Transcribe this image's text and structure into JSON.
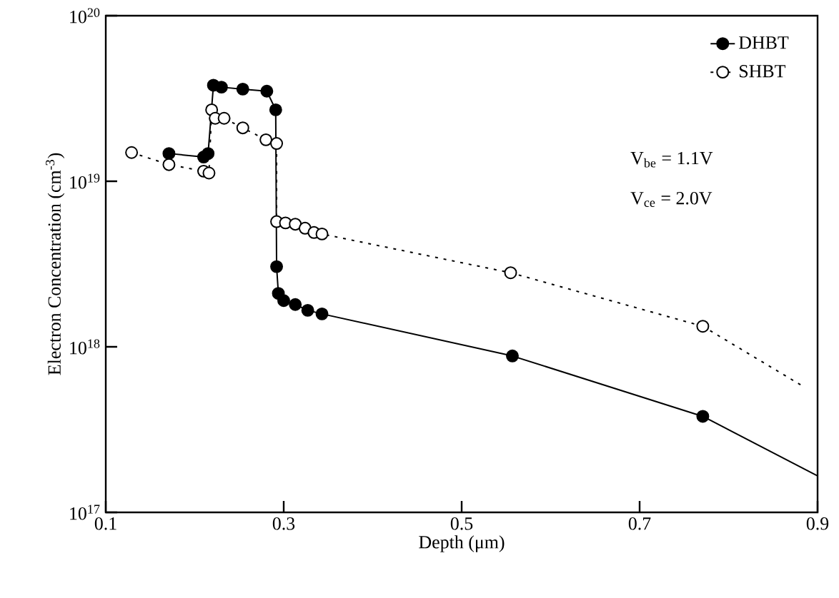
{
  "chart_data": {
    "type": "line",
    "xlabel": "Depth (μm)",
    "ylabel": "Electron Concentration (cm$^{-3}$)",
    "log": "y",
    "xlim": [
      0.1,
      0.9
    ],
    "xticks": [
      0.1,
      0.3,
      0.5,
      0.7,
      0.9
    ],
    "ylim": [
      1e+17,
      1e+20
    ],
    "yticks": [
      {
        "value": 1e+17,
        "label": "10$^{17}$"
      },
      {
        "value": 1e+18,
        "label": "10$^{18}$"
      },
      {
        "value": 1e+19,
        "label": "10$^{19}$"
      },
      {
        "value": 1e+20,
        "label": "10$^{20}$"
      }
    ],
    "legend": "top right",
    "annotations": [
      "V$_{be}$ = 1.1V",
      "V$_{ce}$ = 2.0V"
    ],
    "series": [
      {
        "name": "DHBT",
        "color": "#000000",
        "line_style": "solid",
        "marker": "circle",
        "x": [
          0.171,
          0.21,
          0.215,
          0.221,
          0.23,
          0.254,
          0.281,
          0.291,
          0.292,
          0.294,
          0.3,
          0.313,
          0.327,
          0.343,
          0.557,
          0.771
        ],
        "values": [
          1.47e+19,
          1.4e+19,
          1.47e+19,
          3.8e+19,
          3.7e+19,
          3.6e+19,
          3.5e+19,
          2.7e+19,
          3.05e+18,
          2.1e+18,
          1.9e+18,
          1.8e+18,
          1.66e+18,
          1.58e+18,
          8.8e+17,
          3.8e+17
        ]
      },
      {
        "color": "#000000",
        "line_style": "solid",
        "marker": "none",
        "x": [
          0.771,
          0.9
        ],
        "values": [
          3.8e+17,
          1.66e+17
        ]
      },
      {
        "name": "SHBT",
        "color": "#000000",
        "line_style": "dotted",
        "marker": "circle",
        "x": [
          0.129,
          0.171,
          0.21,
          0.216,
          0.219,
          0.223,
          0.233,
          0.254,
          0.28,
          0.292,
          0.292,
          0.302,
          0.313,
          0.324,
          0.334,
          0.343,
          0.555,
          0.771
        ],
        "values": [
          1.49e+19,
          1.26e+19,
          1.15e+19,
          1.12e+19,
          2.7e+19,
          2.4e+19,
          2.4e+19,
          2.1e+19,
          1.78e+19,
          1.69e+19,
          5.7e+18,
          5.6e+18,
          5.5e+18,
          5.2e+18,
          4.9e+18,
          4.8e+18,
          2.8e+18,
          1.33e+18
        ]
      },
      {
        "color": "#000000",
        "line_style": "dotted",
        "marker": "none",
        "x": [
          0.771,
          0.883
        ],
        "values": [
          1.33e+18,
          5.8e+17
        ]
      }
    ]
  }
}
